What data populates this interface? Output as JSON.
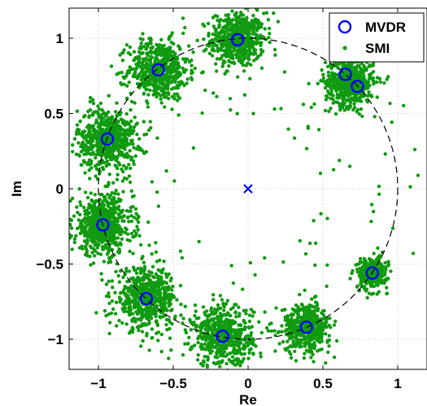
{
  "chart_data": {
    "type": "scatter",
    "xlabel": "Re",
    "ylabel": "Im",
    "xlim": [
      -1.2,
      1.2
    ],
    "ylim": [
      -1.2,
      1.2
    ],
    "x_ticks": [
      -1,
      -0.5,
      0,
      0.5,
      1
    ],
    "x_tick_labels": [
      "−1",
      "−0.5",
      "0",
      "0.5",
      "1"
    ],
    "y_ticks": [
      -1,
      -0.5,
      0,
      0.5,
      1
    ],
    "y_tick_labels": [
      "−1",
      "−0.5",
      "0",
      "0.5",
      "1"
    ],
    "grid": true,
    "legend_placement": "top-right",
    "unit_circle": {
      "center": [
        0,
        0
      ],
      "radius": 1,
      "style": "dashed",
      "color": "#000000"
    },
    "series": [
      {
        "name": "MVDR",
        "marker": "circle-open",
        "color": "#0000ff",
        "points": [
          [
            -0.07,
            0.99
          ],
          [
            -0.6,
            0.79
          ],
          [
            0.65,
            0.76
          ],
          [
            0.73,
            0.68
          ],
          [
            -0.94,
            0.33
          ],
          [
            -0.97,
            -0.24
          ],
          [
            -0.68,
            -0.73
          ],
          [
            -0.17,
            -0.98
          ],
          [
            0.39,
            -0.92
          ],
          [
            0.83,
            -0.56
          ]
        ]
      },
      {
        "name": "SMI",
        "marker": "dot",
        "color": "#109a10",
        "clusters": [
          {
            "center": [
              -0.07,
              0.99
            ],
            "spread": 0.09,
            "count": 550
          },
          {
            "center": [
              -0.6,
              0.79
            ],
            "spread": 0.1,
            "count": 550
          },
          {
            "center": [
              0.68,
              0.71
            ],
            "spread": 0.08,
            "count": 550
          },
          {
            "center": [
              -0.94,
              0.33
            ],
            "spread": 0.1,
            "count": 600
          },
          {
            "center": [
              -0.97,
              -0.24
            ],
            "spread": 0.1,
            "count": 600
          },
          {
            "center": [
              -0.68,
              -0.73
            ],
            "spread": 0.1,
            "count": 550
          },
          {
            "center": [
              -0.17,
              -0.98
            ],
            "spread": 0.1,
            "count": 550
          },
          {
            "center": [
              0.39,
              -0.92
            ],
            "spread": 0.08,
            "count": 450
          },
          {
            "center": [
              0.83,
              -0.56
            ],
            "spread": 0.05,
            "count": 300
          }
        ]
      }
    ],
    "origin_marker": {
      "point": [
        0,
        0
      ],
      "marker": "x",
      "color": "#0000ff"
    }
  }
}
